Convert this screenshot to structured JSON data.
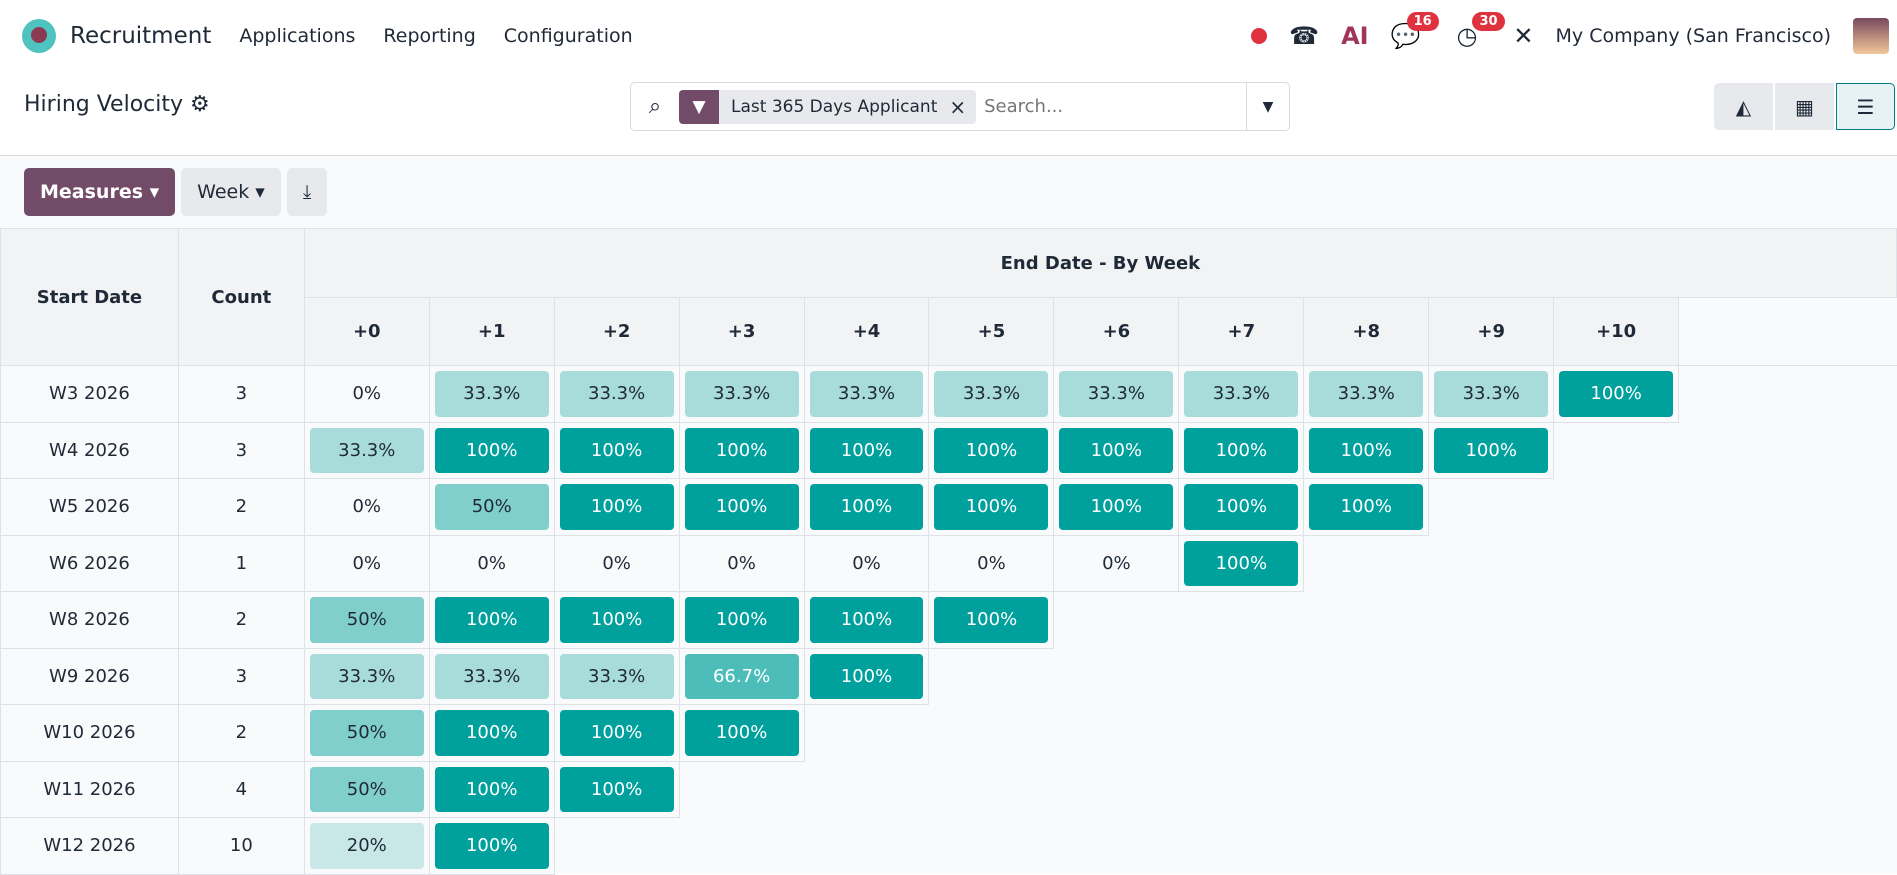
{
  "nav": {
    "brand": "Recruitment",
    "menus": [
      "Applications",
      "Reporting",
      "Configuration"
    ],
    "company": "My Company (San Francisco)",
    "ai_label": "AI",
    "messages_count": "16",
    "activities_count": "30"
  },
  "control": {
    "title": "Hiring Velocity",
    "facet": "Last 365 Days Applicant",
    "search_placeholder": "Search...",
    "views": [
      "graph",
      "pivot",
      "cohort"
    ],
    "active_view": "cohort"
  },
  "toolbar": {
    "measures": "Measures",
    "interval": "Week"
  },
  "cohort": {
    "start_header": "Start Date",
    "count_header": "Count",
    "end_header": "End Date - By Week",
    "columns": [
      "+0",
      "+1",
      "+2",
      "+3",
      "+4",
      "+5",
      "+6",
      "+7",
      "+8",
      "+9",
      "+10"
    ],
    "rows": [
      {
        "start": "W3 2026",
        "count": "3",
        "values": [
          "0%",
          "33.3%",
          "33.3%",
          "33.3%",
          "33.3%",
          "33.3%",
          "33.3%",
          "33.3%",
          "33.3%",
          "33.3%",
          "100%"
        ]
      },
      {
        "start": "W4 2026",
        "count": "3",
        "values": [
          "33.3%",
          "100%",
          "100%",
          "100%",
          "100%",
          "100%",
          "100%",
          "100%",
          "100%",
          "100%"
        ]
      },
      {
        "start": "W5 2026",
        "count": "2",
        "values": [
          "0%",
          "50%",
          "100%",
          "100%",
          "100%",
          "100%",
          "100%",
          "100%",
          "100%"
        ]
      },
      {
        "start": "W6 2026",
        "count": "1",
        "values": [
          "0%",
          "0%",
          "0%",
          "0%",
          "0%",
          "0%",
          "0%",
          "100%"
        ]
      },
      {
        "start": "W8 2026",
        "count": "2",
        "values": [
          "50%",
          "100%",
          "100%",
          "100%",
          "100%",
          "100%"
        ]
      },
      {
        "start": "W9 2026",
        "count": "3",
        "values": [
          "33.3%",
          "33.3%",
          "33.3%",
          "66.7%",
          "100%"
        ]
      },
      {
        "start": "W10 2026",
        "count": "2",
        "values": [
          "50%",
          "100%",
          "100%",
          "100%"
        ]
      },
      {
        "start": "W11 2026",
        "count": "4",
        "values": [
          "50%",
          "100%",
          "100%"
        ]
      },
      {
        "start": "W12 2026",
        "count": "10",
        "values": [
          "20%",
          "100%"
        ]
      }
    ]
  },
  "colors": {
    "accent": "#714b67",
    "teal": "#00a09d",
    "badge": "#e0323e"
  }
}
